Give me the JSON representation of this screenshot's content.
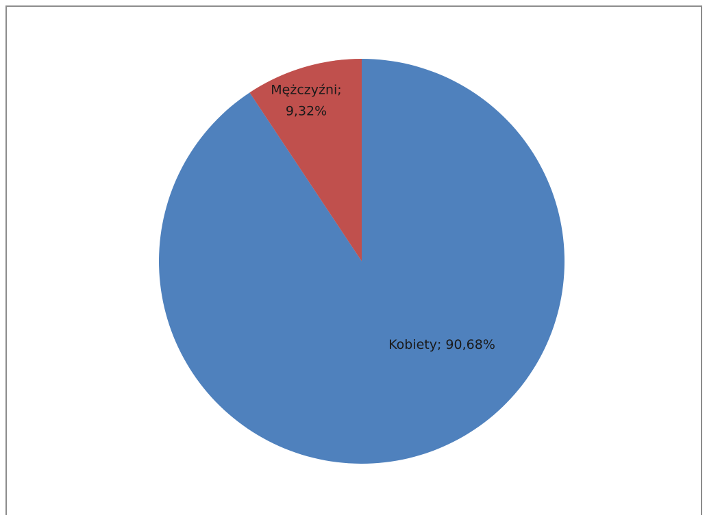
{
  "chart_data": {
    "type": "pie",
    "title": "",
    "start_angle_deg": 0,
    "direction": "clockwise",
    "slices": [
      {
        "category": "Kobiety",
        "value": 90.68,
        "label_lines": [
          "Kobiety; 90,68%"
        ],
        "color": "#4F81BD"
      },
      {
        "category": "Mężczyźni",
        "value": 9.32,
        "label_lines": [
          "Mężczyźni;",
          "9,32%"
        ],
        "color": "#C0504D"
      }
    ],
    "legend": "none"
  }
}
